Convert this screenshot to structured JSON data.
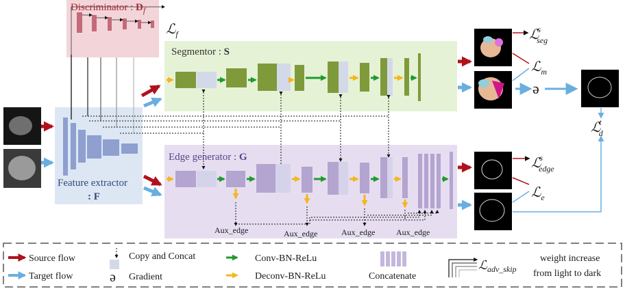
{
  "discriminator": {
    "label": "Discriminator :",
    "symbol": "D",
    "sub": "f"
  },
  "losses": {
    "f": {
      "symbol": "ℒ",
      "sub": "f"
    },
    "seg": {
      "symbol": "ℒ",
      "sup": "s",
      "sub": "seg"
    },
    "m": {
      "symbol": "ℒ",
      "sub": "m"
    },
    "d": {
      "symbol": "ℒ",
      "sup": "t",
      "sub": "d"
    },
    "edge": {
      "symbol": "ℒ",
      "sup": "s",
      "sub": "edge"
    },
    "e": {
      "symbol": "ℒ",
      "sub": "e"
    }
  },
  "gradient_symbol": "ə",
  "segmentor": {
    "label": "Segmentor :",
    "symbol": "S"
  },
  "edge_generator": {
    "label": "Edge generator :",
    "symbol": "G"
  },
  "feature_extractor": {
    "label": "Feature extractor",
    "symbol_line": ": F"
  },
  "aux_edges": [
    "Aux_edge",
    "Aux_edge",
    "Aux_edge",
    "Aux_edge"
  ],
  "legend": {
    "source": "Source flow",
    "target": "Target flow",
    "copy": "Copy and Concat",
    "gradient": "Gradient",
    "conv": "Conv-BN-ReLu",
    "deconv": "Deconv-BN-ReLu",
    "concat": "Concatenate",
    "adv_symbol": "ℒ",
    "adv_sub": "adv_skip",
    "weight1": "weight increase",
    "weight2": "from light to dark"
  }
}
